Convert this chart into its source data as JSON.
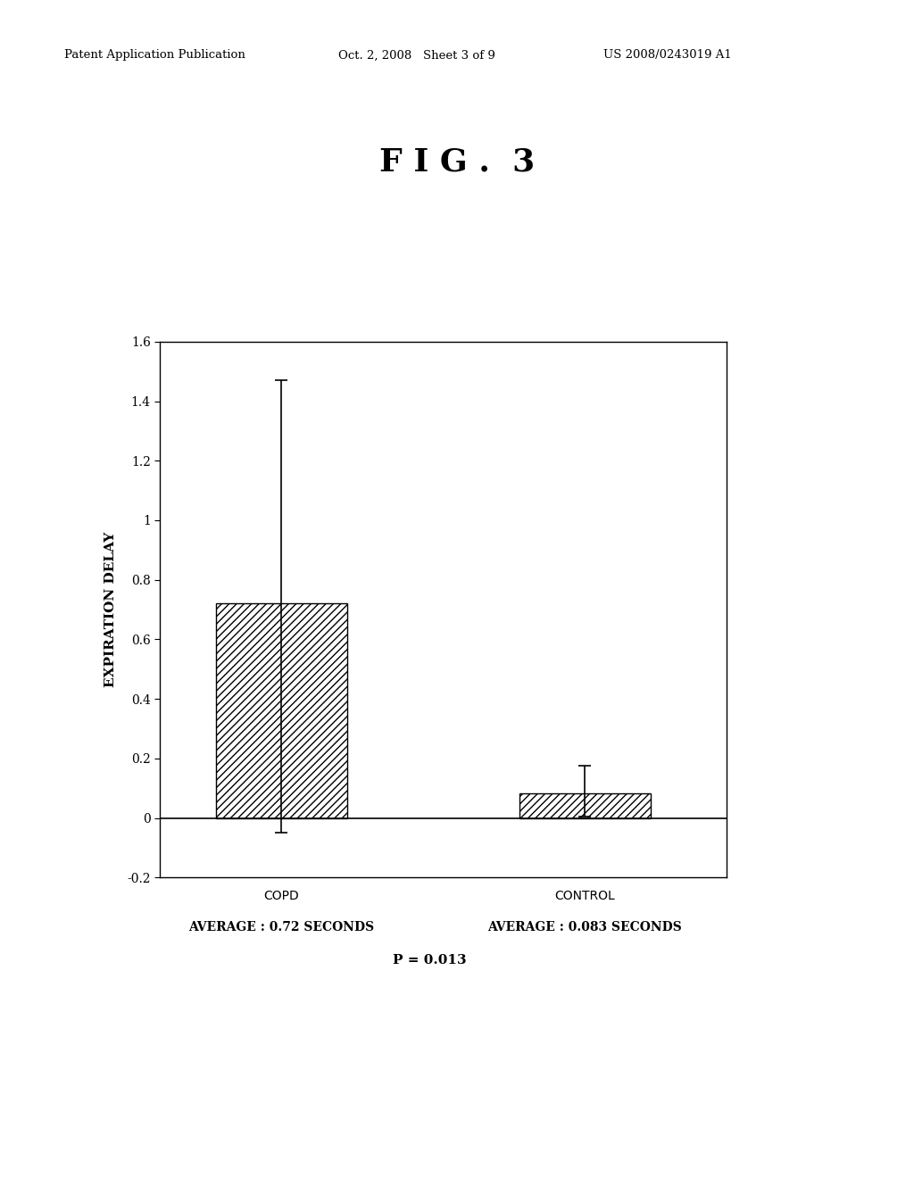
{
  "fig_title": "F I G .  3",
  "patent_header_left": "Patent Application Publication",
  "patent_header_mid": "Oct. 2, 2008   Sheet 3 of 9",
  "patent_header_right": "US 2008/0243019 A1",
  "categories": [
    "COPD",
    "CONTROL"
  ],
  "values": [
    0.72,
    0.083
  ],
  "error_upper": [
    1.47,
    0.175
  ],
  "error_lower": [
    -0.05,
    0.005
  ],
  "ylabel": "EXPIRATION DELAY",
  "ylim": [
    -0.2,
    1.6
  ],
  "yticks": [
    -0.2,
    0,
    0.2,
    0.4,
    0.6,
    0.8,
    1.0,
    1.2,
    1.4,
    1.6
  ],
  "ytick_labels": [
    "-0.2",
    "0",
    "0.2",
    "0.4",
    "0.6",
    "0.8",
    "1",
    "1.2",
    "1.4",
    "1.6"
  ],
  "avg_label_copd": "AVERAGE : 0.72 SECONDS",
  "avg_label_control": "AVERAGE : 0.083 SECONDS",
  "p_label": "P = 0.013",
  "hatch_pattern": "////",
  "background_color": "#ffffff",
  "text_color": "#000000"
}
